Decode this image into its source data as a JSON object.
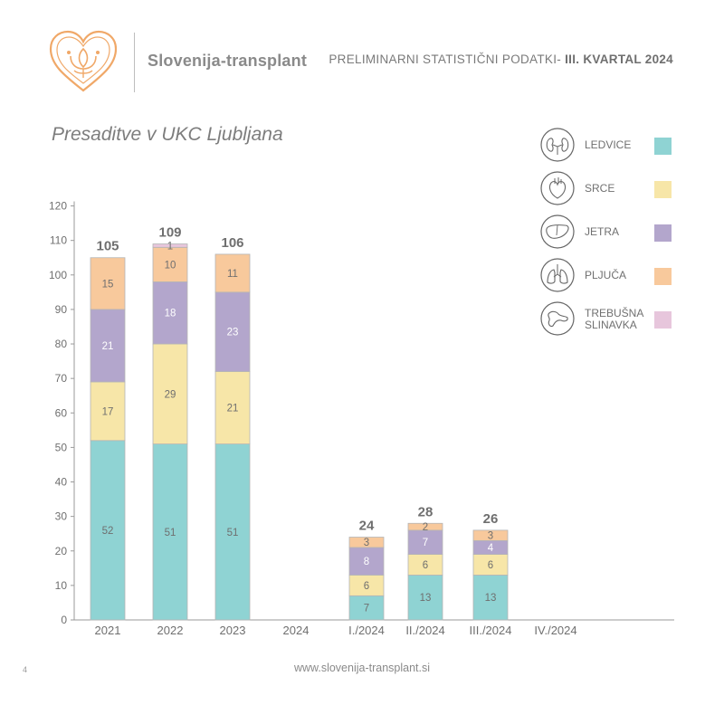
{
  "header": {
    "brand": "Slovenija-transplant",
    "subtitle_prefix": "PRELIMINARNI STATISTIČNI PODATKI-",
    "subtitle_bold": "III. KVARTAL 2024"
  },
  "footer": {
    "url": "www.slovenija-transplant.si",
    "page_number": "4"
  },
  "legend": [
    {
      "label": "LEDVICE",
      "color": "#8fd3d3",
      "icon": "kidney-icon"
    },
    {
      "label": "SRCE",
      "color": "#f7e6a8",
      "icon": "heart-icon"
    },
    {
      "label": "JETRA",
      "color": "#b3a6cc",
      "icon": "liver-icon"
    },
    {
      "label": "PLJUČA",
      "color": "#f8c99c",
      "icon": "lungs-icon"
    },
    {
      "label": "TREBUŠNA SLINAVKA",
      "color": "#e7c6dc",
      "icon": "pancreas-icon"
    }
  ],
  "chart_data": {
    "type": "bar",
    "stacked": true,
    "title": "Presaditve v UKC Ljubljana",
    "categories": [
      "2021",
      "2022",
      "2023",
      "2024",
      "I./2024",
      "II./2024",
      "III./2024",
      "IV./2024"
    ],
    "series": [
      {
        "name": "LEDVICE",
        "color": "#8fd3d3",
        "values": [
          52,
          51,
          51,
          null,
          7,
          13,
          13,
          null
        ]
      },
      {
        "name": "SRCE",
        "color": "#f7e6a8",
        "values": [
          17,
          29,
          21,
          null,
          6,
          6,
          6,
          null
        ]
      },
      {
        "name": "JETRA",
        "color": "#b3a6cc",
        "values": [
          21,
          18,
          23,
          null,
          8,
          7,
          4,
          null
        ]
      },
      {
        "name": "PLJUČA",
        "color": "#f8c99c",
        "values": [
          15,
          10,
          11,
          null,
          3,
          2,
          3,
          null
        ]
      },
      {
        "name": "TREBUŠNA SLINAVKA",
        "color": "#e7c6dc",
        "values": [
          0,
          1,
          0,
          null,
          0,
          0,
          0,
          null
        ]
      }
    ],
    "totals": [
      "105",
      "109",
      "106",
      "",
      "24",
      "28",
      "26",
      ""
    ],
    "yticks": [
      0,
      10,
      20,
      30,
      40,
      50,
      60,
      70,
      80,
      90,
      100,
      110,
      120
    ],
    "ylim": [
      0,
      120
    ],
    "grid": false,
    "legend_position": "right"
  }
}
